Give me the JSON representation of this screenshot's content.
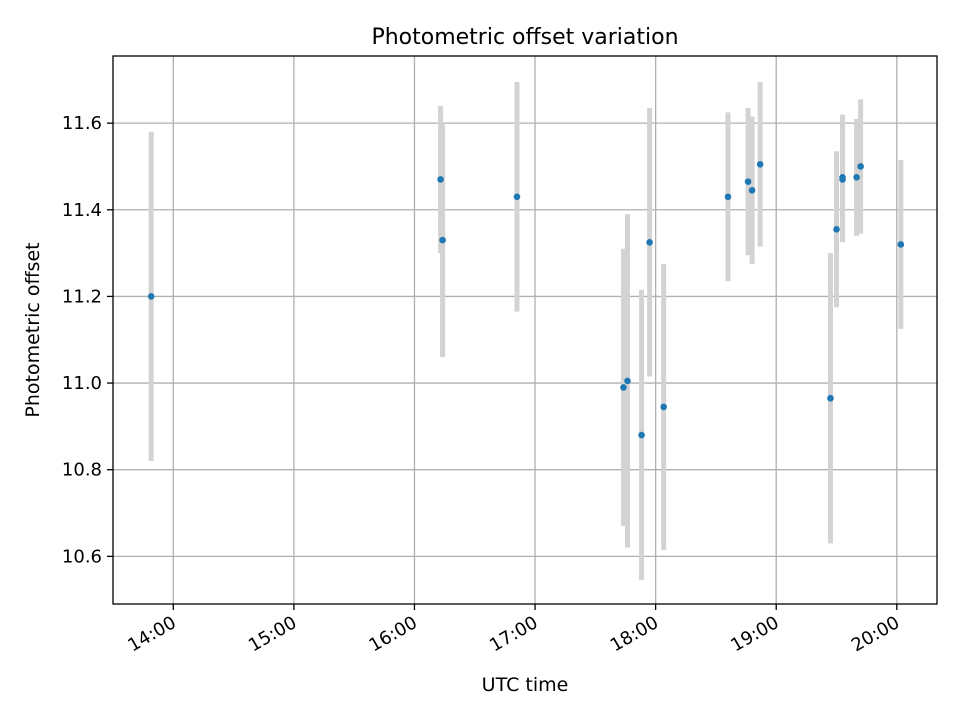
{
  "chart_data": {
    "type": "scatter",
    "title": "Photometric offset variation",
    "xlabel": "UTC time",
    "ylabel": "Photometric offset",
    "xlim": [
      "13:30",
      "20:20"
    ],
    "ylim": [
      10.49,
      11.755
    ],
    "grid": true,
    "x_ticks": [
      "14:00",
      "15:00",
      "16:00",
      "17:00",
      "18:00",
      "19:00",
      "20:00"
    ],
    "y_ticks": [
      "10.6",
      "10.8",
      "11.0",
      "11.2",
      "11.4",
      "11.6"
    ],
    "colors": {
      "points": "#1f77b4",
      "errorbars": "#d3d3d3",
      "grid": "#b0b0b0"
    },
    "series": [
      {
        "points": [
          {
            "x": "13:49",
            "y": 11.2,
            "yerr": 0.38
          },
          {
            "x": "16:13",
            "y": 11.47,
            "yerr": 0.17
          },
          {
            "x": "16:14",
            "y": 11.33,
            "yerr": 0.27
          },
          {
            "x": "16:51",
            "y": 11.43,
            "yerr": 0.265
          },
          {
            "x": "17:44",
            "y": 10.99,
            "yerr": 0.32
          },
          {
            "x": "17:46",
            "y": 11.005,
            "yerr": 0.385
          },
          {
            "x": "17:53",
            "y": 10.88,
            "yerr": 0.335
          },
          {
            "x": "17:57",
            "y": 11.325,
            "yerr": 0.31
          },
          {
            "x": "18:04",
            "y": 10.945,
            "yerr": 0.33
          },
          {
            "x": "18:36",
            "y": 11.43,
            "yerr": 0.195
          },
          {
            "x": "18:46",
            "y": 11.465,
            "yerr": 0.17
          },
          {
            "x": "18:48",
            "y": 11.445,
            "yerr": 0.17
          },
          {
            "x": "18:52",
            "y": 11.505,
            "yerr": 0.19
          },
          {
            "x": "19:27",
            "y": 10.965,
            "yerr": 0.335
          },
          {
            "x": "19:30",
            "y": 11.355,
            "yerr": 0.18
          },
          {
            "x": "19:33",
            "y": 11.47,
            "yerr": 0.145
          },
          {
            "x": "19:33",
            "y": 11.475,
            "yerr": 0.145
          },
          {
            "x": "19:40",
            "y": 11.475,
            "yerr": 0.135
          },
          {
            "x": "19:42",
            "y": 11.5,
            "yerr": 0.155
          },
          {
            "x": "20:02",
            "y": 11.32,
            "yerr": 0.195
          }
        ]
      }
    ]
  }
}
